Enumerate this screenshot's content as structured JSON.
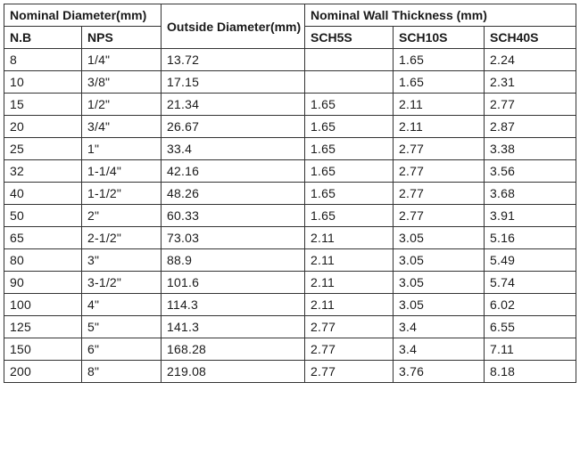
{
  "headers": {
    "nominal_diameter": "Nominal Diameter(mm)",
    "outside_diameter": "Outside Diameter(mm)",
    "wall_thickness": "Nominal Wall Thickness (mm)",
    "nb": "N.B",
    "nps": "NPS",
    "sch5s": "SCH5S",
    "sch10s": "SCH10S",
    "sch40s": "SCH40S"
  },
  "rows": [
    {
      "nb": "8",
      "nps": "1/4\"",
      "od": "13.72",
      "sch5s": "",
      "sch10s": "1.65",
      "sch40s": "2.24"
    },
    {
      "nb": "10",
      "nps": "3/8\"",
      "od": "17.15",
      "sch5s": "",
      "sch10s": "1.65",
      "sch40s": "2.31"
    },
    {
      "nb": "15",
      "nps": "1/2\"",
      "od": "21.34",
      "sch5s": "1.65",
      "sch10s": "2.11",
      "sch40s": "2.77"
    },
    {
      "nb": "20",
      "nps": "3/4\"",
      "od": "26.67",
      "sch5s": "1.65",
      "sch10s": "2.11",
      "sch40s": "2.87"
    },
    {
      "nb": "25",
      "nps": "1\"",
      "od": "33.4",
      "sch5s": "1.65",
      "sch10s": "2.77",
      "sch40s": "3.38"
    },
    {
      "nb": "32",
      "nps": "1-1/4\"",
      "od": "42.16",
      "sch5s": "1.65",
      "sch10s": "2.77",
      "sch40s": "3.56"
    },
    {
      "nb": "40",
      "nps": "1-1/2\"",
      "od": "48.26",
      "sch5s": "1.65",
      "sch10s": "2.77",
      "sch40s": "3.68"
    },
    {
      "nb": "50",
      "nps": "2\"",
      "od": "60.33",
      "sch5s": "1.65",
      "sch10s": "2.77",
      "sch40s": "3.91"
    },
    {
      "nb": "65",
      "nps": "2-1/2\"",
      "od": "73.03",
      "sch5s": "2.11",
      "sch10s": "3.05",
      "sch40s": "5.16"
    },
    {
      "nb": "80",
      "nps": "3\"",
      "od": "88.9",
      "sch5s": "2.11",
      "sch10s": "3.05",
      "sch40s": "5.49"
    },
    {
      "nb": "90",
      "nps": "3-1/2\"",
      "od": "101.6",
      "sch5s": "2.11",
      "sch10s": "3.05",
      "sch40s": "5.74"
    },
    {
      "nb": "100",
      "nps": "4\"",
      "od": "114.3",
      "sch5s": "2.11",
      "sch10s": "3.05",
      "sch40s": "6.02"
    },
    {
      "nb": "125",
      "nps": "5\"",
      "od": "141.3",
      "sch5s": "2.77",
      "sch10s": "3.4",
      "sch40s": "6.55"
    },
    {
      "nb": "150",
      "nps": "6\"",
      "od": "168.28",
      "sch5s": "2.77",
      "sch10s": "3.4",
      "sch40s": "7.11"
    },
    {
      "nb": "200",
      "nps": "8\"",
      "od": "219.08",
      "sch5s": "2.77",
      "sch10s": "3.76",
      "sch40s": "8.18"
    }
  ]
}
